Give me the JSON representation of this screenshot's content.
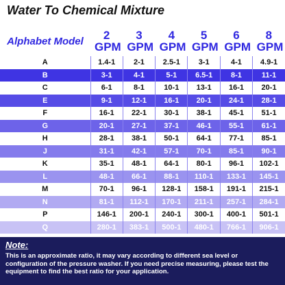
{
  "title": "Water To Chemical Mixture",
  "table": {
    "header": [
      "Alphabet Model",
      "2 GPM",
      "3 GPM",
      "4 GPM",
      "5 GPM",
      "6 GPM",
      "8 GPM"
    ],
    "rows": [
      [
        "A",
        "1.4-1",
        "2-1",
        "2.5-1",
        "3-1",
        "4-1",
        "4.9-1"
      ],
      [
        "B",
        "3-1",
        "4-1",
        "5-1",
        "6.5-1",
        "8-1",
        "11-1"
      ],
      [
        "C",
        "6-1",
        "8-1",
        "10-1",
        "13-1",
        "16-1",
        "20-1"
      ],
      [
        "E",
        "9-1",
        "12-1",
        "16-1",
        "20-1",
        "24-1",
        "28-1"
      ],
      [
        "F",
        "16-1",
        "22-1",
        "30-1",
        "38-1",
        "45-1",
        "51-1"
      ],
      [
        "G",
        "20-1",
        "27-1",
        "37-1",
        "46-1",
        "55-1",
        "61-1"
      ],
      [
        "H",
        "28-1",
        "38-1",
        "50-1",
        "64-1",
        "77-1",
        "85-1"
      ],
      [
        "J",
        "31-1",
        "42-1",
        "57-1",
        "70-1",
        "85-1",
        "90-1"
      ],
      [
        "K",
        "35-1",
        "48-1",
        "64-1",
        "80-1",
        "96-1",
        "102-1"
      ],
      [
        "L",
        "48-1",
        "66-1",
        "88-1",
        "110-1",
        "133-1",
        "145-1"
      ],
      [
        "M",
        "70-1",
        "96-1",
        "128-1",
        "158-1",
        "191-1",
        "215-1"
      ],
      [
        "N",
        "81-1",
        "112-1",
        "170-1",
        "211-1",
        "257-1",
        "284-1"
      ],
      [
        "P",
        "146-1",
        "200-1",
        "240-1",
        "300-1",
        "400-1",
        "501-1"
      ],
      [
        "Q",
        "280-1",
        "383-1",
        "500-1",
        "480-1",
        "766-1",
        "906-1"
      ]
    ]
  },
  "note": {
    "heading": "Note:",
    "text": "This is an approximate ratio, it may vary according to different sea level or configuration of the pressure washer. If you need precise measuring, please test the equipment to find the best ratio for your application."
  }
}
